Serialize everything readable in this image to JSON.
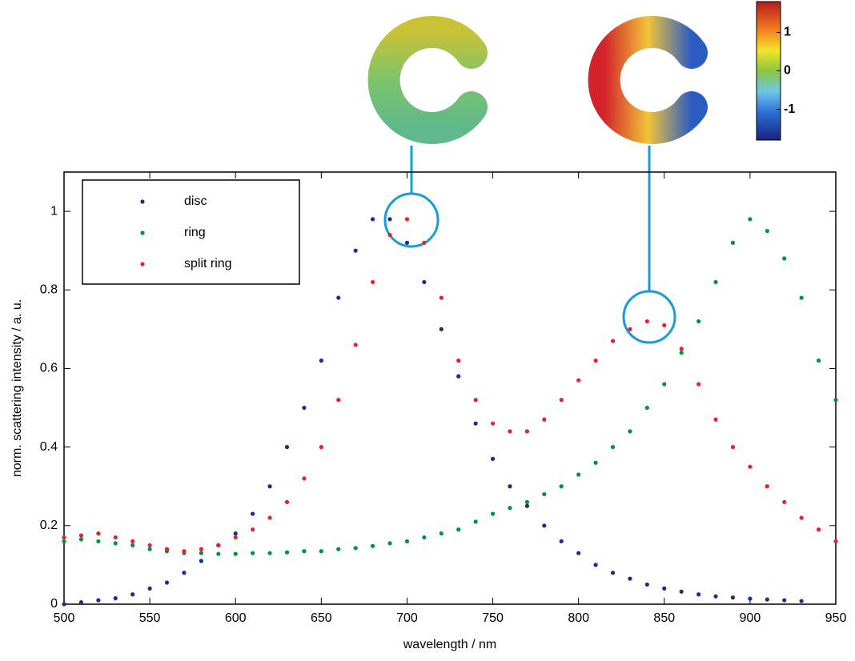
{
  "chart_data": {
    "type": "scatter",
    "xlabel": "wavelength / nm",
    "ylabel": "norm. scattering intensity / a. u.",
    "xlim": [
      500,
      950
    ],
    "xticks": [
      500,
      550,
      600,
      650,
      700,
      750,
      800,
      850,
      900,
      950
    ],
    "ylim": [
      0,
      1.1
    ],
    "yticks": [
      0,
      0.2,
      0.4,
      0.6,
      0.8,
      1
    ],
    "legend": "upper left",
    "series": [
      {
        "name": "disc",
        "color": "#1f2a8a",
        "x": [
          500,
          510,
          520,
          530,
          540,
          550,
          560,
          570,
          580,
          590,
          600,
          610,
          620,
          630,
          640,
          650,
          660,
          670,
          680,
          690,
          700,
          710,
          720,
          730,
          740,
          750,
          760,
          770,
          780,
          790,
          800,
          810,
          820,
          830,
          840,
          850,
          860,
          870,
          880,
          890,
          900,
          910,
          920,
          930
        ],
        "values": [
          0.0,
          0.005,
          0.01,
          0.015,
          0.025,
          0.04,
          0.055,
          0.08,
          0.11,
          0.15,
          0.18,
          0.23,
          0.3,
          0.4,
          0.5,
          0.62,
          0.78,
          0.9,
          0.98,
          0.98,
          0.92,
          0.82,
          0.7,
          0.58,
          0.46,
          0.37,
          0.3,
          0.25,
          0.2,
          0.16,
          0.13,
          0.1,
          0.08,
          0.065,
          0.05,
          0.04,
          0.032,
          0.025,
          0.02,
          0.017,
          0.014,
          0.012,
          0.01,
          0.008
        ]
      },
      {
        "name": "ring",
        "color": "#00923f",
        "x": [
          500,
          510,
          520,
          530,
          540,
          550,
          560,
          570,
          580,
          590,
          600,
          610,
          620,
          630,
          640,
          650,
          660,
          670,
          680,
          690,
          700,
          710,
          720,
          730,
          740,
          750,
          760,
          770,
          780,
          790,
          800,
          810,
          820,
          830,
          840,
          850,
          860,
          870,
          880,
          890,
          900,
          910,
          920,
          930,
          940,
          950
        ],
        "values": [
          0.16,
          0.165,
          0.16,
          0.155,
          0.15,
          0.14,
          0.135,
          0.13,
          0.13,
          0.128,
          0.128,
          0.13,
          0.13,
          0.132,
          0.135,
          0.135,
          0.14,
          0.143,
          0.148,
          0.155,
          0.16,
          0.17,
          0.18,
          0.19,
          0.21,
          0.23,
          0.245,
          0.26,
          0.28,
          0.3,
          0.33,
          0.36,
          0.4,
          0.44,
          0.5,
          0.56,
          0.64,
          0.72,
          0.82,
          0.92,
          0.98,
          0.95,
          0.88,
          0.78,
          0.62,
          0.52
        ]
      },
      {
        "name": "split ring",
        "color": "#e8202a",
        "x": [
          500,
          510,
          520,
          530,
          540,
          550,
          560,
          570,
          580,
          590,
          600,
          610,
          620,
          630,
          640,
          650,
          660,
          670,
          680,
          690,
          700,
          710,
          720,
          730,
          740,
          750,
          760,
          770,
          780,
          790,
          800,
          810,
          820,
          830,
          840,
          850,
          860,
          870,
          880,
          890,
          900,
          910,
          920,
          930,
          940,
          950
        ],
        "values": [
          0.17,
          0.175,
          0.18,
          0.17,
          0.16,
          0.15,
          0.14,
          0.135,
          0.14,
          0.15,
          0.17,
          0.19,
          0.22,
          0.26,
          0.32,
          0.4,
          0.52,
          0.66,
          0.82,
          0.94,
          0.98,
          0.92,
          0.78,
          0.62,
          0.52,
          0.46,
          0.44,
          0.44,
          0.47,
          0.52,
          0.57,
          0.62,
          0.67,
          0.7,
          0.72,
          0.71,
          0.65,
          0.56,
          0.47,
          0.4,
          0.35,
          0.3,
          0.26,
          0.22,
          0.19,
          0.16
        ]
      }
    ],
    "colorbar": {
      "lim": [
        -1.8,
        1.8
      ],
      "ticks": [
        -1,
        0,
        1
      ]
    }
  }
}
